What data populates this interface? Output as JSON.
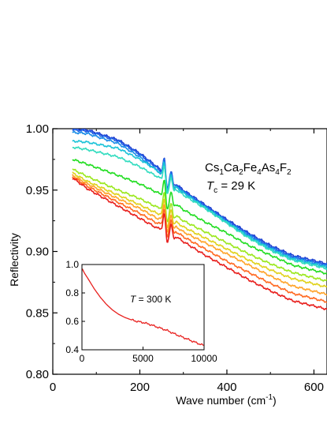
{
  "chart_data": [
    {
      "type": "line",
      "title": "",
      "xlabel": "Wave number (cm",
      "xlabel_sup": "-1",
      "xlabel_close": ")",
      "ylabel": "Reflectivity",
      "xlim": [
        0,
        630
      ],
      "ylim": [
        0.8,
        1.0
      ],
      "xticks": [
        0,
        200,
        400,
        600
      ],
      "xtick_labels": [
        "0",
        "200",
        "400",
        "600"
      ],
      "yticks": [
        0.8,
        0.85,
        0.9,
        0.95,
        1.0
      ],
      "ytick_labels": [
        "0.80",
        "0.85",
        "0.90",
        "0.95",
        "1.00"
      ],
      "grid": false,
      "legend": "none",
      "annotations": {
        "compound": "Cs1Ca2Fe4As4F2",
        "compound_parts": [
          "Cs",
          "1",
          "Ca",
          "2",
          "Fe",
          "4",
          "As",
          "4",
          "F",
          "2"
        ],
        "tc_symbol": "T",
        "tc_sub": "c",
        "tc_rest": " = 29 K"
      },
      "series": [
        {
          "color": "#2040d0",
          "values": [
            [
              45,
              1.0
            ],
            [
              80,
              0.999
            ],
            [
              150,
              0.991
            ],
            [
              200,
              0.98
            ],
            [
              240,
              0.969
            ],
            [
              260,
              0.962
            ],
            [
              300,
              0.95
            ],
            [
              350,
              0.938
            ],
            [
              400,
              0.926
            ],
            [
              450,
              0.915
            ],
            [
              500,
              0.905
            ],
            [
              550,
              0.897
            ],
            [
              630,
              0.89
            ]
          ]
        },
        {
          "color": "#1f60e6",
          "values": [
            [
              45,
              0.999
            ],
            [
              80,
              0.998
            ],
            [
              150,
              0.99
            ],
            [
              200,
              0.979
            ],
            [
              240,
              0.968
            ],
            [
              260,
              0.961
            ],
            [
              300,
              0.949
            ],
            [
              350,
              0.937
            ],
            [
              400,
              0.925
            ],
            [
              450,
              0.914
            ],
            [
              500,
              0.904
            ],
            [
              550,
              0.896
            ],
            [
              630,
              0.889
            ]
          ]
        },
        {
          "color": "#1b8ee8",
          "values": [
            [
              45,
              0.997
            ],
            [
              80,
              0.996
            ],
            [
              150,
              0.988
            ],
            [
              200,
              0.977
            ],
            [
              240,
              0.966
            ],
            [
              260,
              0.959
            ],
            [
              300,
              0.948
            ],
            [
              350,
              0.936
            ],
            [
              400,
              0.924
            ],
            [
              450,
              0.913
            ],
            [
              500,
              0.903
            ],
            [
              550,
              0.895
            ],
            [
              630,
              0.888
            ]
          ]
        },
        {
          "color": "#1cc3d8",
          "values": [
            [
              45,
              0.99
            ],
            [
              80,
              0.989
            ],
            [
              150,
              0.984
            ],
            [
              200,
              0.975
            ],
            [
              240,
              0.966
            ],
            [
              260,
              0.959
            ],
            [
              300,
              0.948
            ],
            [
              350,
              0.936
            ],
            [
              400,
              0.924
            ],
            [
              450,
              0.912
            ],
            [
              500,
              0.902
            ],
            [
              550,
              0.894
            ],
            [
              630,
              0.887
            ]
          ]
        },
        {
          "color": "#32dcbf",
          "values": [
            [
              45,
              0.985
            ],
            [
              80,
              0.983
            ],
            [
              150,
              0.977
            ],
            [
              200,
              0.969
            ],
            [
              240,
              0.961
            ],
            [
              260,
              0.957
            ],
            [
              300,
              0.946
            ],
            [
              350,
              0.935
            ],
            [
              400,
              0.923
            ],
            [
              450,
              0.911
            ],
            [
              500,
              0.901
            ],
            [
              550,
              0.893
            ],
            [
              630,
              0.886
            ]
          ]
        },
        {
          "color": "#22dd22",
          "values": [
            [
              45,
              0.975
            ],
            [
              80,
              0.971
            ],
            [
              150,
              0.962
            ],
            [
              200,
              0.955
            ],
            [
              240,
              0.948
            ],
            [
              260,
              0.945
            ],
            [
              300,
              0.934
            ],
            [
              350,
              0.924
            ],
            [
              400,
              0.915
            ],
            [
              450,
              0.905
            ],
            [
              500,
              0.897
            ],
            [
              550,
              0.889
            ],
            [
              630,
              0.882
            ]
          ]
        },
        {
          "color": "#9be81e",
          "values": [
            [
              45,
              0.967
            ],
            [
              80,
              0.961
            ],
            [
              150,
              0.95
            ],
            [
              200,
              0.943
            ],
            [
              240,
              0.936
            ],
            [
              260,
              0.935
            ],
            [
              300,
              0.925
            ],
            [
              350,
              0.916
            ],
            [
              400,
              0.907
            ],
            [
              450,
              0.898
            ],
            [
              500,
              0.89
            ],
            [
              550,
              0.883
            ],
            [
              630,
              0.876
            ]
          ]
        },
        {
          "color": "#e0d21c",
          "values": [
            [
              45,
              0.964
            ],
            [
              80,
              0.957
            ],
            [
              150,
              0.946
            ],
            [
              200,
              0.938
            ],
            [
              240,
              0.931
            ],
            [
              260,
              0.93
            ],
            [
              300,
              0.92
            ],
            [
              350,
              0.911
            ],
            [
              400,
              0.902
            ],
            [
              450,
              0.893
            ],
            [
              500,
              0.885
            ],
            [
              550,
              0.878
            ],
            [
              630,
              0.871
            ]
          ]
        },
        {
          "color": "#ffa42a",
          "values": [
            [
              45,
              0.962
            ],
            [
              80,
              0.955
            ],
            [
              150,
              0.943
            ],
            [
              200,
              0.935
            ],
            [
              240,
              0.927
            ],
            [
              260,
              0.926
            ],
            [
              300,
              0.916
            ],
            [
              350,
              0.907
            ],
            [
              400,
              0.898
            ],
            [
              450,
              0.889
            ],
            [
              500,
              0.88
            ],
            [
              550,
              0.872
            ],
            [
              630,
              0.865
            ]
          ]
        },
        {
          "color": "#ff6a22",
          "values": [
            [
              45,
              0.961
            ],
            [
              80,
              0.953
            ],
            [
              150,
              0.94
            ],
            [
              200,
              0.931
            ],
            [
              240,
              0.923
            ],
            [
              260,
              0.922
            ],
            [
              300,
              0.912
            ],
            [
              350,
              0.902
            ],
            [
              400,
              0.892
            ],
            [
              450,
              0.883
            ],
            [
              500,
              0.874
            ],
            [
              550,
              0.866
            ],
            [
              630,
              0.859
            ]
          ]
        },
        {
          "color": "#e8201e",
          "values": [
            [
              45,
              0.96
            ],
            [
              80,
              0.951
            ],
            [
              150,
              0.937
            ],
            [
              200,
              0.927
            ],
            [
              240,
              0.919
            ],
            [
              260,
              0.918
            ],
            [
              300,
              0.908
            ],
            [
              350,
              0.897
            ],
            [
              400,
              0.887
            ],
            [
              450,
              0.877
            ],
            [
              500,
              0.868
            ],
            [
              550,
              0.86
            ],
            [
              630,
              0.853
            ]
          ]
        }
      ]
    },
    {
      "type": "line",
      "title": "",
      "xlabel": "",
      "ylabel": "",
      "xlim": [
        0,
        10000
      ],
      "ylim": [
        0.4,
        1.0
      ],
      "xticks": [
        0,
        5000,
        10000
      ],
      "xtick_labels": [
        "0",
        "5000",
        "10000"
      ],
      "yticks": [
        0.4,
        0.6,
        0.8,
        1.0
      ],
      "ytick_labels": [
        "0.4",
        "0.6",
        "0.8",
        "1.0"
      ],
      "grid": false,
      "legend": "none",
      "annotations": {
        "temp_symbol": "T",
        "temp_rest": " = 300 K"
      },
      "series": [
        {
          "color": "#e8201e",
          "values": [
            [
              30,
              0.97
            ],
            [
              200,
              0.94
            ],
            [
              500,
              0.9
            ],
            [
              1000,
              0.83
            ],
            [
              1500,
              0.77
            ],
            [
              2000,
              0.72
            ],
            [
              2500,
              0.68
            ],
            [
              3000,
              0.65
            ],
            [
              3500,
              0.628
            ],
            [
              4000,
              0.612
            ],
            [
              4500,
              0.6
            ],
            [
              5000,
              0.592
            ],
            [
              5500,
              0.58
            ],
            [
              6000,
              0.565
            ],
            [
              6500,
              0.55
            ],
            [
              7000,
              0.535
            ],
            [
              7500,
              0.515
            ],
            [
              8000,
              0.497
            ],
            [
              8500,
              0.48
            ],
            [
              9000,
              0.462
            ],
            [
              9500,
              0.445
            ],
            [
              10000,
              0.43
            ]
          ]
        }
      ]
    }
  ]
}
